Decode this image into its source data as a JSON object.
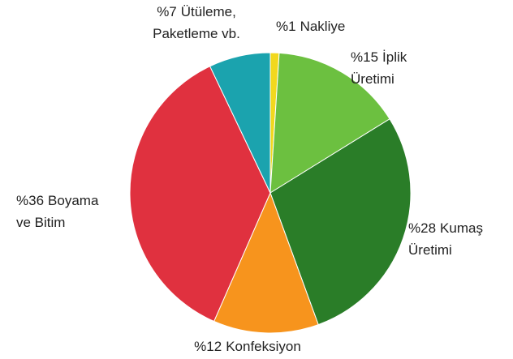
{
  "chart_data": {
    "type": "pie",
    "categories": [
      [
        "Nakliye"
      ],
      [
        "İplik",
        "Üretimi"
      ],
      [
        "Kumaş",
        "Üretimi"
      ],
      [
        "Konfeksiyon"
      ],
      [
        "Boyama",
        "ve Bitim"
      ],
      [
        "Ütüleme,",
        "Paketleme vb."
      ]
    ],
    "values": [
      1,
      15,
      28,
      12,
      36,
      7
    ],
    "value_labels": [
      "%1",
      "%15",
      "%28",
      "%12",
      "%36",
      "%7"
    ],
    "colors": [
      "#f2d81e",
      "#6cc040",
      "#2a7d28",
      "#f7941d",
      "#e0313f",
      "#1ba3ae"
    ]
  }
}
